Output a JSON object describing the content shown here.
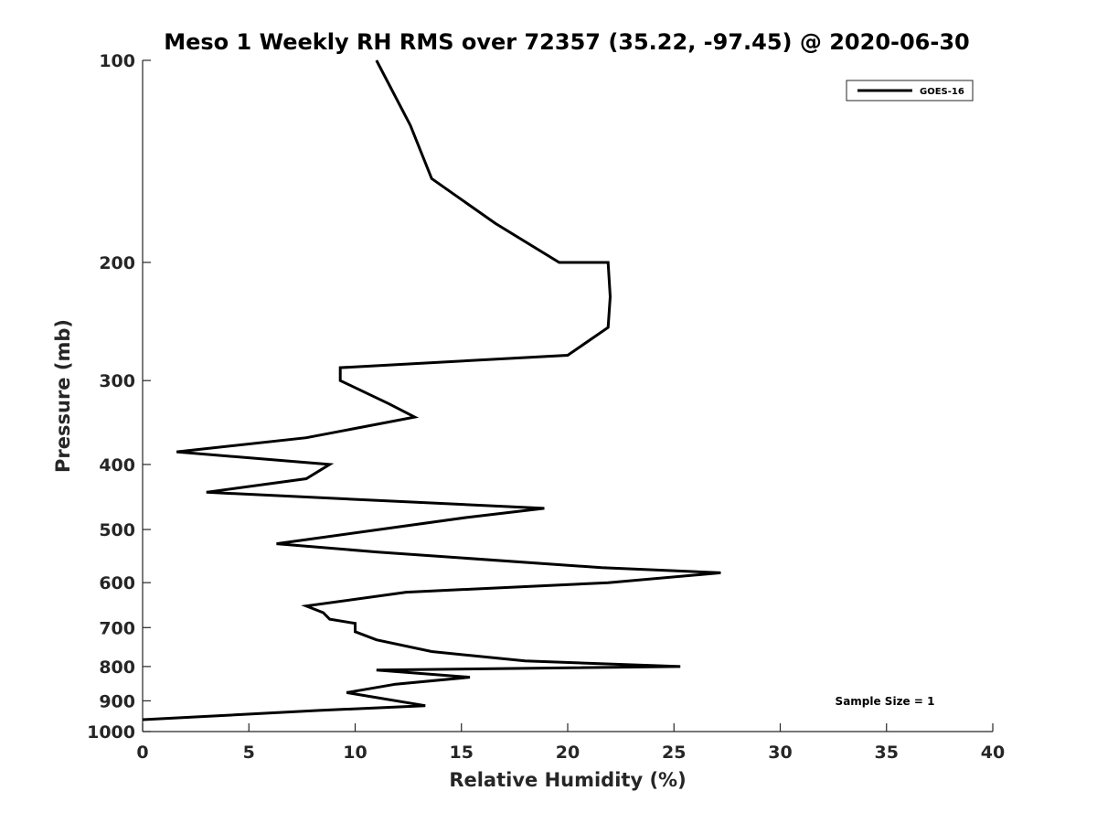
{
  "chart_data": {
    "type": "line",
    "title": "Meso 1 Weekly RH RMS over 72357 (35.22, -97.45) @ 2020-06-30",
    "xlabel": "Relative Humidity (%)",
    "ylabel": "Pressure (mb)",
    "xlim": [
      0,
      40
    ],
    "ylim": [
      100,
      1000
    ],
    "yscale": "log",
    "yaxis_direction": "reversed",
    "x_ticks": [
      0,
      5,
      10,
      15,
      20,
      25,
      30,
      35,
      40
    ],
    "x_tick_labels": [
      "0",
      "5",
      "10",
      "15",
      "20",
      "25",
      "30",
      "35",
      "40"
    ],
    "y_ticks": [
      100,
      200,
      300,
      400,
      500,
      600,
      700,
      800,
      900,
      1000
    ],
    "y_tick_labels": [
      "100",
      "200",
      "300",
      "400",
      "500",
      "600",
      "700",
      "800",
      "900",
      "1000"
    ],
    "grid": false,
    "legend_position": "top-right",
    "series": [
      {
        "name": "GOES-16",
        "color": "#000000",
        "points": [
          [
            11.0,
            100
          ],
          [
            12.6,
            125
          ],
          [
            13.6,
            150
          ],
          [
            16.6,
            175
          ],
          [
            19.6,
            200
          ],
          [
            21.9,
            200
          ],
          [
            22.0,
            225
          ],
          [
            21.9,
            250
          ],
          [
            20.0,
            275
          ],
          [
            9.3,
            287
          ],
          [
            9.3,
            300
          ],
          [
            11.6,
            325
          ],
          [
            12.8,
            340
          ],
          [
            7.7,
            365
          ],
          [
            1.6,
            383
          ],
          [
            8.8,
            400
          ],
          [
            7.7,
            420
          ],
          [
            3.0,
            440
          ],
          [
            18.9,
            465
          ],
          [
            15.2,
            480
          ],
          [
            6.3,
            525
          ],
          [
            11.0,
            540
          ],
          [
            21.6,
            570
          ],
          [
            27.2,
            580
          ],
          [
            21.9,
            600
          ],
          [
            12.4,
            620
          ],
          [
            7.7,
            650
          ],
          [
            8.5,
            665
          ],
          [
            8.8,
            680
          ],
          [
            10.0,
            690
          ],
          [
            10.0,
            710
          ],
          [
            11.0,
            730
          ],
          [
            13.6,
            760
          ],
          [
            18.0,
            785
          ],
          [
            25.3,
            800
          ],
          [
            11.0,
            810
          ],
          [
            15.4,
            830
          ],
          [
            11.9,
            850
          ],
          [
            9.6,
            875
          ],
          [
            13.3,
            915
          ],
          [
            8.3,
            930
          ],
          [
            0.0,
            960
          ]
        ]
      }
    ],
    "annotations": [
      {
        "text": "Sample Size = 1",
        "position": "bottom-right"
      }
    ]
  }
}
